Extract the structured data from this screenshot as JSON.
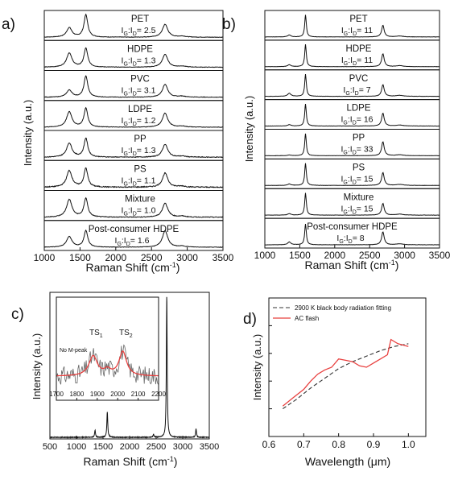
{
  "chart_data": [
    {
      "panel": "a)",
      "type": "line",
      "xlabel": "Raman Shift (cm",
      "xlabel_sup": "-1",
      "xlabel_end": ")",
      "ylabel": "Intensity (a.u.)",
      "xlim": [
        1000,
        3500
      ],
      "xticks": [
        "1000",
        "1500",
        "2000",
        "2500",
        "3000",
        "3500"
      ],
      "series": [
        {
          "name": "PET",
          "ratio": "2.5",
          "peaks": {
            "D": 0.4,
            "G": 0.95,
            "2D": 0.55
          },
          "noise": 0.02
        },
        {
          "name": "HDPE",
          "ratio": "1.3",
          "peaks": {
            "D": 0.6,
            "G": 0.8,
            "2D": 0.55
          },
          "noise": 0.02
        },
        {
          "name": "PVC",
          "ratio": "3.1",
          "peaks": {
            "D": 0.3,
            "G": 0.9,
            "2D": 0.55
          },
          "noise": 0.02
        },
        {
          "name": "LDPE",
          "ratio": "1.2",
          "peaks": {
            "D": 0.65,
            "G": 0.8,
            "2D": 0.6
          },
          "noise": 0.02
        },
        {
          "name": "PP",
          "ratio": "1.3",
          "peaks": {
            "D": 0.6,
            "G": 0.8,
            "2D": 0.55
          },
          "noise": 0.03
        },
        {
          "name": "PS",
          "ratio": "1.1",
          "peaks": {
            "D": 0.7,
            "G": 0.8,
            "2D": 0.6
          },
          "noise": 0.04
        },
        {
          "name": "Mixture",
          "ratio": "1.0",
          "peaks": {
            "D": 0.75,
            "G": 0.8,
            "2D": 0.6
          },
          "noise": 0.03
        },
        {
          "name": "Post-consumer HDPE",
          "ratio": "1.6",
          "peaks": {
            "D": 0.45,
            "G": 0.7,
            "2D": 0.7
          },
          "noise": 0.02
        }
      ]
    },
    {
      "panel": "b)",
      "type": "line",
      "xlabel": "Raman Shift (cm",
      "xlabel_sup": "-1",
      "xlabel_end": ")",
      "ylabel": "Intensity (a.u.)",
      "xlim": [
        1000,
        3500
      ],
      "xticks": [
        "1000",
        "1500",
        "2000",
        "2500",
        "3000",
        "3500"
      ],
      "series": [
        {
          "name": "PET",
          "ratio": "11",
          "peaks": {
            "D": 0.08,
            "G": 0.95,
            "2D": 0.5
          },
          "noise": 0.01
        },
        {
          "name": "HDPE",
          "ratio": "11",
          "peaks": {
            "D": 0.08,
            "G": 0.95,
            "2D": 0.55
          },
          "noise": 0.01
        },
        {
          "name": "PVC",
          "ratio": "7",
          "peaks": {
            "D": 0.13,
            "G": 0.95,
            "2D": 0.5
          },
          "noise": 0.01
        },
        {
          "name": "LDPE",
          "ratio": "16",
          "peaks": {
            "D": 0.06,
            "G": 0.95,
            "2D": 0.55
          },
          "noise": 0.01
        },
        {
          "name": "PP",
          "ratio": "33",
          "peaks": {
            "D": 0.03,
            "G": 0.95,
            "2D": 0.6
          },
          "noise": 0.01
        },
        {
          "name": "PS",
          "ratio": "15",
          "peaks": {
            "D": 0.06,
            "G": 0.95,
            "2D": 0.55
          },
          "noise": 0.01
        },
        {
          "name": "Mixture",
          "ratio": "15",
          "peaks": {
            "D": 0.06,
            "G": 0.95,
            "2D": 0.5
          },
          "noise": 0.01
        },
        {
          "name": "Post-consumer HDPE",
          "ratio": "8",
          "peaks": {
            "D": 0.12,
            "G": 0.9,
            "2D": 0.55
          },
          "noise": 0.01
        }
      ]
    },
    {
      "panel": "c)",
      "type": "line",
      "xlabel": "Raman Shift (cm",
      "xlabel_sup": "-1",
      "xlabel_end": ")",
      "ylabel": "Intensity (a.u.)",
      "xlim": [
        500,
        3500
      ],
      "xticks": [
        "500",
        "1000",
        "1500",
        "2000",
        "2500",
        "3000",
        "3500"
      ],
      "peaks": [
        {
          "x": 1350,
          "y": 0.05
        },
        {
          "x": 1580,
          "y": 0.18
        },
        {
          "x": 2450,
          "y": 0.02
        },
        {
          "x": 2700,
          "y": 1.0
        },
        {
          "x": 3250,
          "y": 0.06
        }
      ],
      "inset": {
        "xlim": [
          1700,
          2200
        ],
        "xticks": [
          "1700",
          "1800",
          "1900",
          "2000",
          "2100",
          "2200"
        ],
        "labels": {
          "no_m": "No M-peak",
          "ts1": "TS",
          "ts1_sub": "1",
          "ts2": "TS",
          "ts2_sub": "2"
        },
        "fit_color": "#e8403f",
        "data_color": "#666666"
      }
    },
    {
      "panel": "d)",
      "type": "line",
      "xlabel": "Wavelength (",
      "xlabel_mu": "μ",
      "xlabel_end": "m)",
      "ylabel": "Intensity (a.u.)",
      "xlim": [
        0.6,
        1.05
      ],
      "xticks": [
        "0.6",
        "0.7",
        "0.8",
        "0.9",
        "1.0"
      ],
      "series": [
        {
          "name": "2900 K black body radiation fitting",
          "style": "dashed",
          "color": "#333333",
          "x": [
            0.64,
            0.68,
            0.72,
            0.76,
            0.8,
            0.84,
            0.88,
            0.92,
            0.96,
            1.0
          ],
          "y": [
            0.2,
            0.27,
            0.35,
            0.42,
            0.49,
            0.54,
            0.58,
            0.62,
            0.65,
            0.67
          ]
        },
        {
          "name": "AC flash",
          "style": "solid",
          "color": "#e8403f",
          "x": [
            0.64,
            0.67,
            0.7,
            0.72,
            0.74,
            0.76,
            0.78,
            0.8,
            0.82,
            0.84,
            0.86,
            0.88,
            0.9,
            0.92,
            0.94,
            0.95,
            0.97,
            1.0
          ],
          "y": [
            0.22,
            0.28,
            0.34,
            0.4,
            0.45,
            0.48,
            0.5,
            0.56,
            0.55,
            0.54,
            0.51,
            0.5,
            0.53,
            0.56,
            0.59,
            0.7,
            0.67,
            0.65
          ]
        }
      ]
    }
  ]
}
